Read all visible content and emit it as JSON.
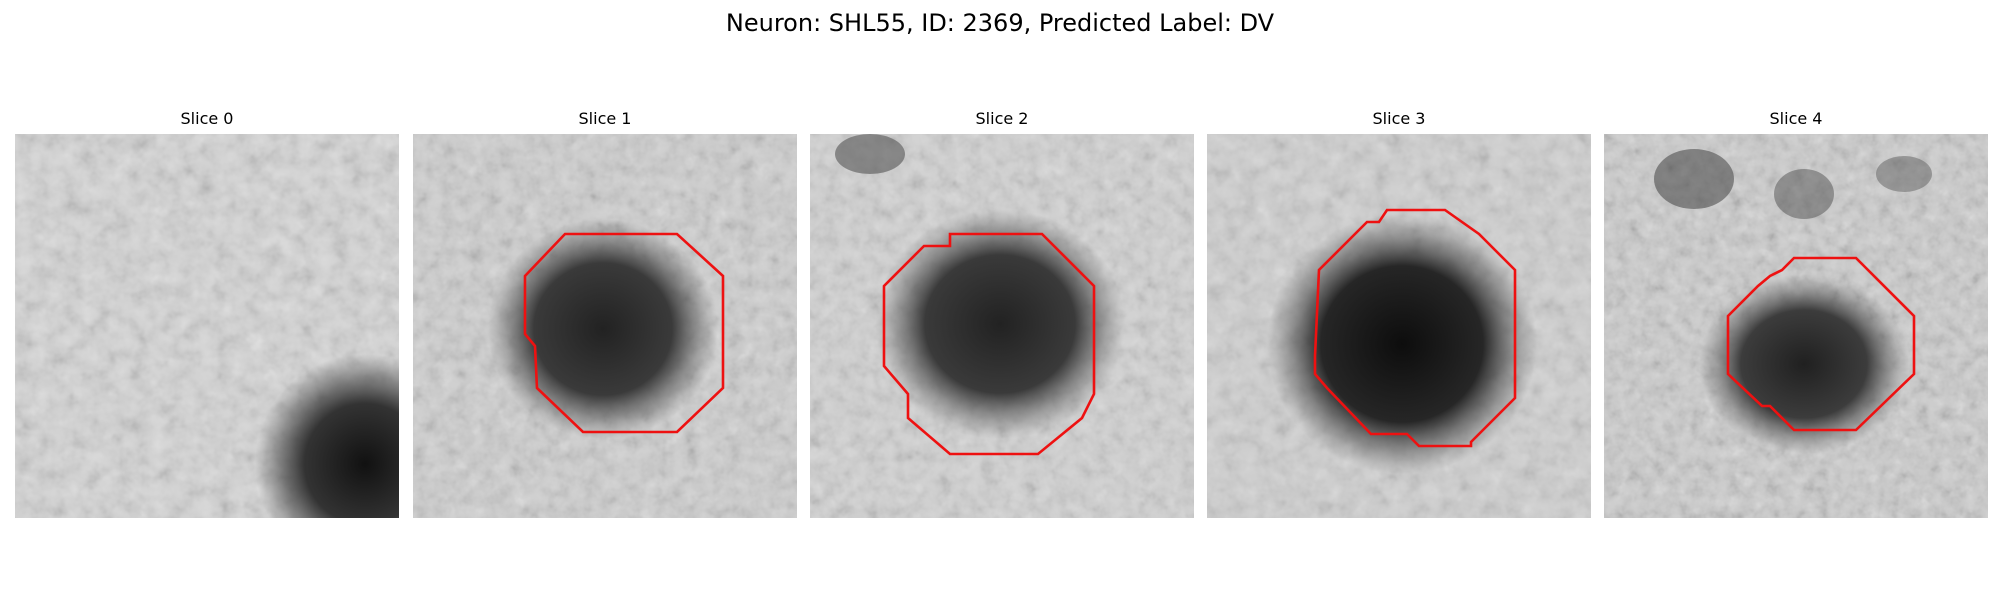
{
  "figure": {
    "title": "Neuron: SHL55, ID: 2369, Predicted Label: DV"
  },
  "panels": [
    {
      "title": "Slice 0",
      "has_contour": false
    },
    {
      "title": "Slice 1",
      "has_contour": true
    },
    {
      "title": "Slice 2",
      "has_contour": true
    },
    {
      "title": "Slice 3",
      "has_contour": true
    },
    {
      "title": "Slice 4",
      "has_contour": true
    }
  ],
  "colors": {
    "contour": "#ee1111",
    "background": "#ffffff"
  }
}
